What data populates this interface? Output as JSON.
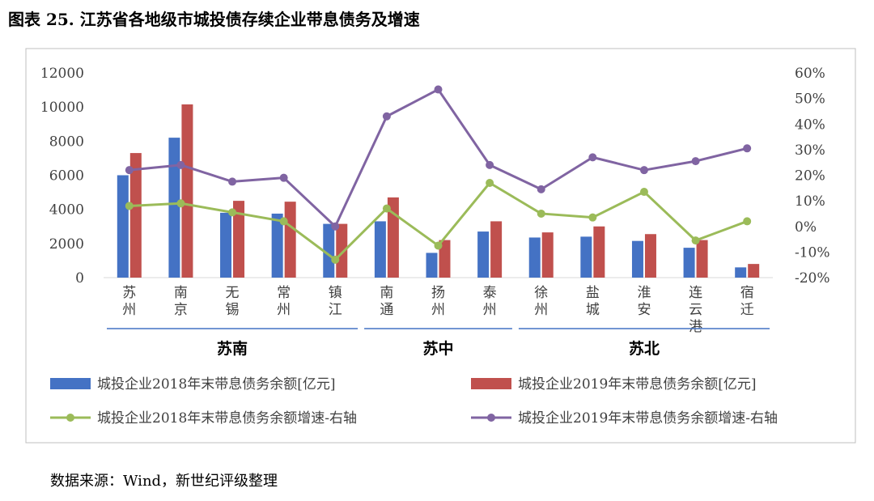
{
  "title": "图表 25. 江苏省各地级市城投债存续企业带息债务及增速",
  "source": "数据来源：Wind，新世纪评级整理",
  "chart_data": {
    "type": "bar",
    "categories": [
      "苏州",
      "南京",
      "无锡",
      "常州",
      "镇江",
      "南通",
      "扬州",
      "泰州",
      "徐州",
      "盐城",
      "淮安",
      "连云港",
      "宿迁"
    ],
    "regions": [
      {
        "name": "苏南",
        "from": 0,
        "to": 4
      },
      {
        "name": "苏中",
        "from": 5,
        "to": 7
      },
      {
        "name": "苏北",
        "from": 8,
        "to": 12
      }
    ],
    "left_axis": {
      "ylim": [
        0,
        12000
      ],
      "ticks": [
        "0",
        "2000",
        "4000",
        "6000",
        "8000",
        "10000",
        "12000"
      ]
    },
    "right_axis": {
      "ylim": [
        -20,
        60
      ],
      "ticks": [
        "-20%",
        "-10%",
        "0%",
        "10%",
        "20%",
        "30%",
        "40%",
        "50%",
        "60%"
      ]
    },
    "series": [
      {
        "name": "城投企业2018年末带息债务余额[亿元]",
        "kind": "bar",
        "axis": "left",
        "color": "#4472C4",
        "values": [
          6000,
          8200,
          3800,
          3750,
          3150,
          3300,
          1450,
          2700,
          2350,
          2400,
          2150,
          1750,
          600
        ]
      },
      {
        "name": "城投企业2019年末带息债务余额[亿元]",
        "kind": "bar",
        "axis": "left",
        "color": "#C0504D",
        "values": [
          7300,
          10150,
          4500,
          4450,
          3150,
          4700,
          2200,
          3300,
          2650,
          3000,
          2550,
          2200,
          800
        ]
      },
      {
        "name": "城投企业2018年末带息债务余额增速-右轴",
        "kind": "line",
        "axis": "right",
        "color": "#9BBB59",
        "values": [
          8,
          9,
          5.5,
          2,
          -13,
          7,
          -7.5,
          17,
          5,
          3.5,
          13.5,
          -5.5,
          2
        ]
      },
      {
        "name": "城投企业2019年末带息债务余额增速-右轴",
        "kind": "line",
        "axis": "right",
        "color": "#8064A2",
        "values": [
          22,
          24,
          17.5,
          19,
          0,
          43,
          53.5,
          24,
          14.5,
          27,
          22,
          25.5,
          30.5
        ]
      }
    ],
    "legend_position": "bottom",
    "grid": false
  }
}
